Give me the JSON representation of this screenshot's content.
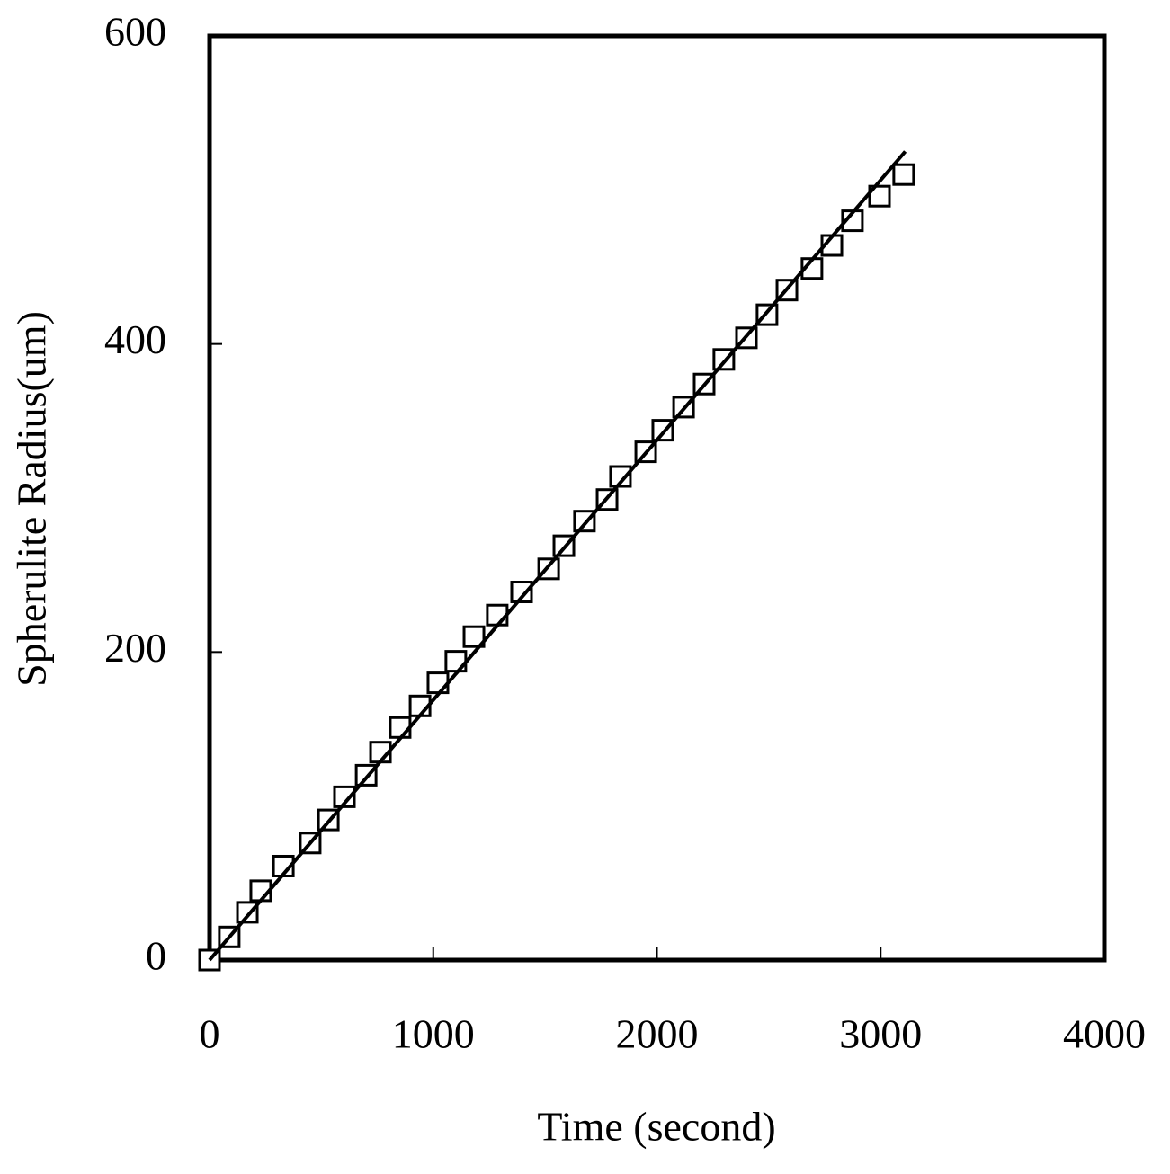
{
  "chart_data": {
    "type": "scatter",
    "xlabel": "Time (second)",
    "ylabel": "Spherulite Radius(um)",
    "xlim": [
      0,
      4000
    ],
    "xticks": [
      0,
      1000,
      2000,
      3000,
      4000
    ],
    "ylim": [
      0,
      600
    ],
    "yticks": [
      0,
      200,
      400,
      600
    ],
    "grid": false,
    "series": [
      {
        "type": "scatter",
        "marker": "square",
        "color": "#000000",
        "x": [
          0,
          88,
          169,
          229,
          330,
          450,
          531,
          603,
          700,
          764,
          852,
          941,
          1021,
          1101,
          1182,
          1286,
          1395,
          1516,
          1584,
          1676,
          1777,
          1837,
          1950,
          2026,
          2119,
          2211,
          2299,
          2400,
          2492,
          2581,
          2693,
          2782,
          2874,
          2995,
          3103
        ],
        "values": [
          0,
          15,
          31,
          45,
          61,
          76,
          91,
          106,
          120,
          135,
          151,
          165,
          180,
          194,
          210,
          224,
          239,
          254,
          269,
          285,
          299,
          314,
          330,
          344,
          359,
          374,
          390,
          404,
          419,
          435,
          449,
          464,
          480,
          496,
          510
        ]
      },
      {
        "type": "line",
        "color": "#000000",
        "x": [
          0,
          3110
        ],
        "values": [
          0,
          525
        ]
      }
    ]
  }
}
